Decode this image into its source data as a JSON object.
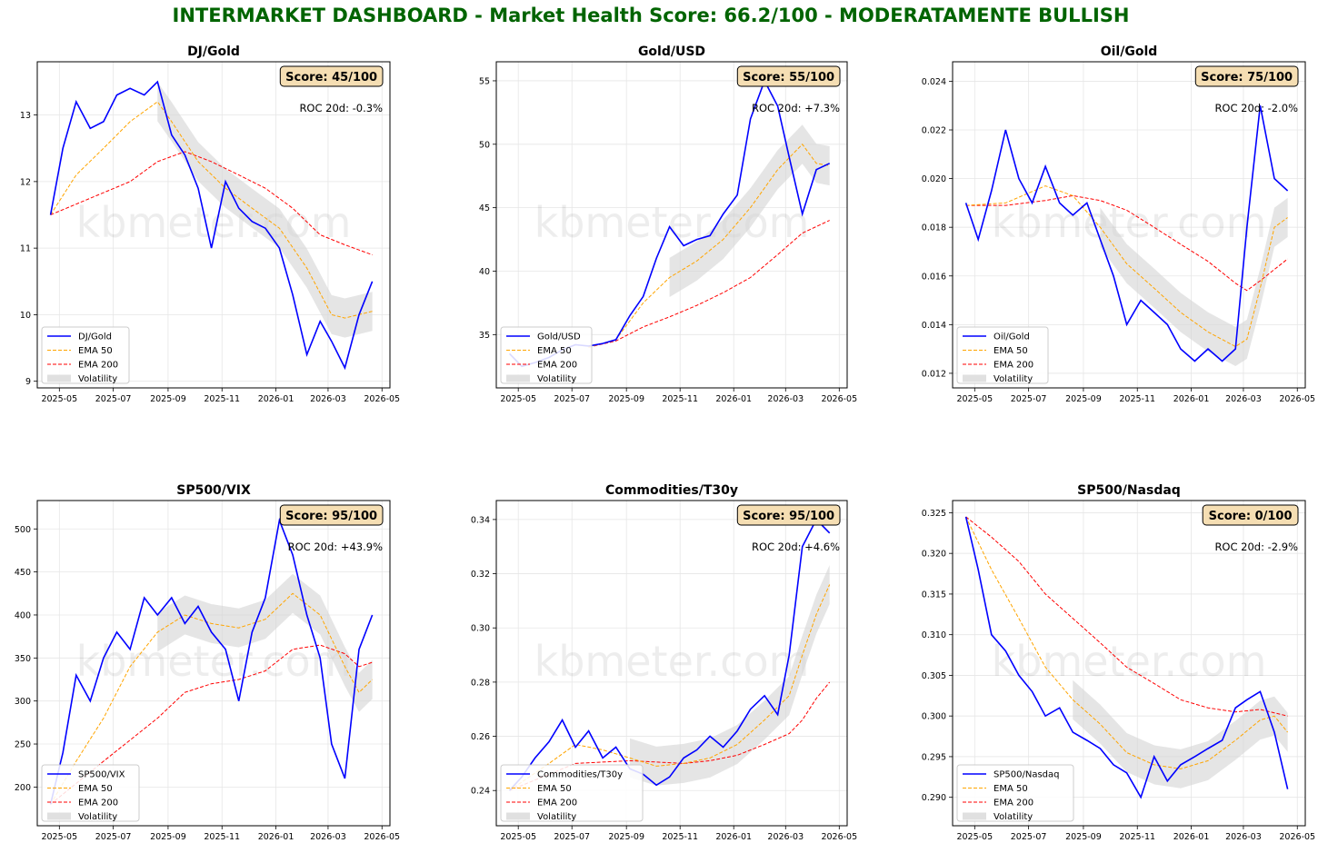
{
  "dashboard": {
    "title": "INTERMARKET DASHBOARD - Market Health Score: 66.2/100 - MODERATAMENTE BULLISH",
    "watermark": "kbmeter.com"
  },
  "colors": {
    "title": "#006400",
    "price": "#0000ff",
    "ema50": "#ffa500",
    "ema200": "#ff0000",
    "volatility": "#d3d3d3",
    "score_box": "#f5deb3"
  },
  "x_ticks": [
    "2025-05",
    "2025-07",
    "2025-09",
    "2025-11",
    "2026-01",
    "2026-03",
    "2026-05"
  ],
  "chart_data": [
    {
      "type": "line",
      "title": "DJ/Gold",
      "score": "Score: 45/100",
      "roc": "ROC 20d: -0.3%",
      "ylim": [
        8.9,
        13.8
      ],
      "yticks": [
        "9",
        "10",
        "11",
        "12",
        "13"
      ],
      "ytick_values": [
        9,
        10,
        11,
        12,
        13
      ],
      "grid": true,
      "legend_position": "lower-left",
      "legend": [
        "DJ/Gold",
        "EMA 50",
        "EMA 200",
        "Volatility"
      ],
      "series": [
        {
          "name": "DJ/Gold",
          "x": [
            "2025-04-21",
            "2025-05-05",
            "2025-05-20",
            "2025-06-05",
            "2025-06-20",
            "2025-07-05",
            "2025-07-20",
            "2025-08-05",
            "2025-08-20",
            "2025-09-05",
            "2025-09-20",
            "2025-10-05",
            "2025-10-20",
            "2025-11-05",
            "2025-11-20",
            "2025-12-05",
            "2025-12-20",
            "2026-01-05",
            "2026-01-20",
            "2026-02-05",
            "2026-02-20",
            "2026-03-05",
            "2026-03-20",
            "2026-04-05",
            "2026-04-20"
          ],
          "values": [
            11.5,
            12.5,
            13.2,
            12.8,
            12.9,
            13.3,
            13.4,
            13.3,
            13.5,
            12.7,
            12.4,
            11.9,
            11.0,
            12.0,
            11.6,
            11.4,
            11.3,
            11.0,
            10.3,
            9.4,
            9.9,
            9.6,
            9.2,
            10.0,
            10.5
          ]
        },
        {
          "name": "EMA 50",
          "x": [
            "2025-04-21",
            "2025-05-20",
            "2025-06-20",
            "2025-07-20",
            "2025-08-20",
            "2025-09-05",
            "2025-10-05",
            "2025-11-05",
            "2025-12-05",
            "2026-01-05",
            "2026-02-05",
            "2026-03-05",
            "2026-03-20",
            "2026-04-20"
          ],
          "values": [
            11.5,
            12.1,
            12.5,
            12.9,
            13.2,
            12.9,
            12.3,
            11.9,
            11.6,
            11.3,
            10.7,
            10.0,
            9.95,
            10.05
          ]
        },
        {
          "name": "EMA 200",
          "x": [
            "2025-04-21",
            "2025-06-05",
            "2025-07-20",
            "2025-08-20",
            "2025-09-20",
            "2025-10-20",
            "2025-11-20",
            "2025-12-20",
            "2026-01-20",
            "2026-02-20",
            "2026-03-20",
            "2026-04-20"
          ],
          "values": [
            11.5,
            11.75,
            12.0,
            12.3,
            12.45,
            12.3,
            12.1,
            11.9,
            11.6,
            11.2,
            11.05,
            10.9
          ]
        }
      ]
    },
    {
      "type": "line",
      "title": "Gold/USD",
      "score": "Score: 55/100",
      "roc": "ROC 20d: +7.3%",
      "ylim": [
        30.8,
        56.5
      ],
      "yticks": [
        "35",
        "40",
        "45",
        "50",
        "55"
      ],
      "ytick_values": [
        35,
        40,
        45,
        50,
        55
      ],
      "grid": true,
      "legend_position": "lower-left",
      "legend": [
        "Gold/USD",
        "EMA 50",
        "EMA 200",
        "Volatility"
      ],
      "series": [
        {
          "name": "Gold/USD",
          "x": [
            "2025-04-21",
            "2025-05-05",
            "2025-05-20",
            "2025-06-05",
            "2025-06-20",
            "2025-07-05",
            "2025-07-20",
            "2025-08-05",
            "2025-08-20",
            "2025-09-05",
            "2025-09-20",
            "2025-10-05",
            "2025-10-20",
            "2025-11-05",
            "2025-11-20",
            "2025-12-05",
            "2025-12-20",
            "2026-01-05",
            "2026-01-20",
            "2026-02-05",
            "2026-02-20",
            "2026-03-05",
            "2026-03-20",
            "2026-04-05",
            "2026-04-20"
          ],
          "values": [
            33.5,
            32.5,
            32.8,
            33.2,
            33.8,
            34.2,
            34.1,
            34.3,
            34.6,
            36.5,
            38.0,
            41.0,
            43.5,
            42.0,
            42.5,
            42.8,
            44.5,
            46.0,
            52.0,
            55.0,
            53.0,
            49.0,
            44.5,
            48.0,
            48.5
          ]
        },
        {
          "name": "EMA 50",
          "x": [
            "2025-07-20",
            "2025-08-20",
            "2025-09-20",
            "2025-10-20",
            "2025-11-20",
            "2025-12-20",
            "2026-01-20",
            "2026-02-20",
            "2026-03-20",
            "2026-04-05",
            "2026-04-20"
          ],
          "values": [
            34.0,
            34.6,
            37.5,
            39.5,
            40.8,
            42.5,
            45.0,
            48.0,
            50.0,
            48.5,
            48.3
          ]
        },
        {
          "name": "EMA 200",
          "x": [
            "2025-07-20",
            "2025-08-20",
            "2025-09-20",
            "2025-10-20",
            "2025-11-20",
            "2025-12-20",
            "2026-01-20",
            "2026-02-20",
            "2026-03-20",
            "2026-04-20"
          ],
          "values": [
            34.0,
            34.5,
            35.6,
            36.4,
            37.3,
            38.3,
            39.5,
            41.3,
            43.0,
            44.0
          ]
        }
      ]
    },
    {
      "type": "line",
      "title": "Oil/Gold",
      "score": "Score: 75/100",
      "roc": "ROC 20d: -2.0%",
      "ylim": [
        0.0114,
        0.0248
      ],
      "yticks": [
        "0.012",
        "0.014",
        "0.016",
        "0.018",
        "0.020",
        "0.022",
        "0.024"
      ],
      "ytick_values": [
        0.012,
        0.014,
        0.016,
        0.018,
        0.02,
        0.022,
        0.024
      ],
      "grid": true,
      "legend_position": "lower-left",
      "legend": [
        "Oil/Gold",
        "EMA 50",
        "EMA 200",
        "Volatility"
      ],
      "series": [
        {
          "name": "Oil/Gold",
          "x": [
            "2025-04-21",
            "2025-05-05",
            "2025-05-20",
            "2025-06-05",
            "2025-06-20",
            "2025-07-05",
            "2025-07-20",
            "2025-08-05",
            "2025-08-20",
            "2025-09-05",
            "2025-09-20",
            "2025-10-05",
            "2025-10-20",
            "2025-11-05",
            "2025-11-20",
            "2025-12-05",
            "2025-12-20",
            "2026-01-05",
            "2026-01-20",
            "2026-02-05",
            "2026-02-20",
            "2026-03-05",
            "2026-03-20",
            "2026-04-05",
            "2026-04-20"
          ],
          "values": [
            0.019,
            0.0175,
            0.0195,
            0.022,
            0.02,
            0.019,
            0.0205,
            0.019,
            0.0185,
            0.019,
            0.0175,
            0.016,
            0.014,
            0.015,
            0.0145,
            0.014,
            0.013,
            0.0125,
            0.013,
            0.0125,
            0.013,
            0.018,
            0.023,
            0.02,
            0.0195
          ]
        },
        {
          "name": "EMA 50",
          "x": [
            "2025-04-21",
            "2025-06-05",
            "2025-07-20",
            "2025-08-20",
            "2025-09-20",
            "2025-10-20",
            "2025-11-20",
            "2025-12-20",
            "2026-01-20",
            "2026-02-20",
            "2026-03-05",
            "2026-03-20",
            "2026-04-05",
            "2026-04-20"
          ],
          "values": [
            0.0189,
            0.019,
            0.0197,
            0.0193,
            0.018,
            0.0165,
            0.0155,
            0.0145,
            0.0137,
            0.0131,
            0.0134,
            0.0155,
            0.018,
            0.0184
          ]
        },
        {
          "name": "EMA 200",
          "x": [
            "2025-04-21",
            "2025-06-05",
            "2025-07-20",
            "2025-08-20",
            "2025-09-20",
            "2025-10-20",
            "2025-11-20",
            "2025-12-20",
            "2026-01-20",
            "2026-02-20",
            "2026-03-05",
            "2026-03-20",
            "2026-04-20"
          ],
          "values": [
            0.0189,
            0.0189,
            0.0191,
            0.0193,
            0.0191,
            0.0187,
            0.018,
            0.0173,
            0.0166,
            0.0157,
            0.0154,
            0.0158,
            0.0167
          ]
        }
      ]
    },
    {
      "type": "line",
      "title": "SP500/VIX",
      "score": "Score: 95/100",
      "roc": "ROC 20d: +43.9%",
      "ylim": [
        155,
        533
      ],
      "yticks": [
        "200",
        "250",
        "300",
        "350",
        "400",
        "450",
        "500"
      ],
      "ytick_values": [
        200,
        250,
        300,
        350,
        400,
        450,
        500
      ],
      "grid": true,
      "legend_position": "lower-left",
      "legend": [
        "SP500/VIX",
        "EMA 50",
        "EMA 200",
        "Volatility"
      ],
      "series": [
        {
          "name": "SP500/VIX",
          "x": [
            "2025-04-21",
            "2025-05-05",
            "2025-05-20",
            "2025-06-05",
            "2025-06-20",
            "2025-07-05",
            "2025-07-20",
            "2025-08-05",
            "2025-08-20",
            "2025-09-05",
            "2025-09-20",
            "2025-10-05",
            "2025-10-20",
            "2025-11-05",
            "2025-11-20",
            "2025-12-05",
            "2025-12-20",
            "2026-01-05",
            "2026-01-20",
            "2026-02-05",
            "2026-02-20",
            "2026-03-05",
            "2026-03-20",
            "2026-04-05",
            "2026-04-20"
          ],
          "values": [
            180,
            240,
            330,
            300,
            350,
            380,
            360,
            420,
            400,
            420,
            390,
            410,
            380,
            360,
            300,
            380,
            420,
            510,
            470,
            400,
            350,
            250,
            210,
            360,
            400
          ]
        },
        {
          "name": "EMA 50",
          "x": [
            "2025-04-21",
            "2025-05-20",
            "2025-06-20",
            "2025-07-20",
            "2025-08-20",
            "2025-09-20",
            "2025-10-20",
            "2025-11-20",
            "2025-12-20",
            "2026-01-20",
            "2026-02-20",
            "2026-03-20",
            "2026-04-05",
            "2026-04-20"
          ],
          "values": [
            180,
            230,
            280,
            340,
            380,
            400,
            390,
            385,
            395,
            425,
            400,
            340,
            310,
            325
          ]
        },
        {
          "name": "EMA 200",
          "x": [
            "2025-04-21",
            "2025-06-20",
            "2025-08-20",
            "2025-09-20",
            "2025-10-20",
            "2025-11-20",
            "2025-12-20",
            "2026-01-20",
            "2026-02-20",
            "2026-03-20",
            "2026-04-05",
            "2026-04-20"
          ],
          "values": [
            180,
            230,
            280,
            310,
            320,
            325,
            335,
            360,
            365,
            355,
            340,
            345
          ]
        }
      ]
    },
    {
      "type": "line",
      "title": "Commodities/T30y",
      "score": "Score: 95/100",
      "roc": "ROC 20d: +4.6%",
      "ylim": [
        0.227,
        0.347
      ],
      "yticks": [
        "0.24",
        "0.26",
        "0.28",
        "0.30",
        "0.32",
        "0.34"
      ],
      "ytick_values": [
        0.24,
        0.26,
        0.28,
        0.3,
        0.32,
        0.34
      ],
      "grid": true,
      "legend_position": "lower-left",
      "legend": [
        "Commodities/T30y",
        "EMA 50",
        "EMA 200",
        "Volatility"
      ],
      "series": [
        {
          "name": "Commodities/T30y",
          "x": [
            "2025-04-21",
            "2025-05-05",
            "2025-05-20",
            "2025-06-05",
            "2025-06-20",
            "2025-07-05",
            "2025-07-20",
            "2025-08-05",
            "2025-08-20",
            "2025-09-05",
            "2025-09-20",
            "2025-10-05",
            "2025-10-20",
            "2025-11-05",
            "2025-11-20",
            "2025-12-05",
            "2025-12-20",
            "2026-01-05",
            "2026-01-20",
            "2026-02-05",
            "2026-02-20",
            "2026-03-05",
            "2026-03-20",
            "2026-04-05",
            "2026-04-20"
          ],
          "values": [
            0.24,
            0.245,
            0.252,
            0.258,
            0.266,
            0.256,
            0.262,
            0.252,
            0.256,
            0.248,
            0.246,
            0.242,
            0.245,
            0.252,
            0.255,
            0.26,
            0.256,
            0.262,
            0.27,
            0.275,
            0.268,
            0.29,
            0.33,
            0.34,
            0.335
          ]
        },
        {
          "name": "EMA 50",
          "x": [
            "2025-04-21",
            "2025-06-05",
            "2025-07-05",
            "2025-08-05",
            "2025-09-05",
            "2025-10-05",
            "2025-11-05",
            "2025-12-05",
            "2026-01-05",
            "2026-02-05",
            "2026-03-05",
            "2026-03-20",
            "2026-04-05",
            "2026-04-20"
          ],
          "values": [
            0.24,
            0.25,
            0.257,
            0.255,
            0.252,
            0.249,
            0.25,
            0.252,
            0.257,
            0.266,
            0.275,
            0.29,
            0.305,
            0.316
          ]
        },
        {
          "name": "EMA 200",
          "x": [
            "2025-04-21",
            "2025-07-05",
            "2025-09-05",
            "2025-11-05",
            "2025-12-05",
            "2026-01-05",
            "2026-02-05",
            "2026-03-05",
            "2026-03-20",
            "2026-04-05",
            "2026-04-20"
          ],
          "values": [
            0.24,
            0.25,
            0.251,
            0.25,
            0.251,
            0.253,
            0.257,
            0.261,
            0.266,
            0.274,
            0.28
          ]
        }
      ]
    },
    {
      "type": "line",
      "title": "SP500/Nasdaq",
      "score": "Score: 0/100",
      "roc": "ROC 20d: -2.9%",
      "ylim": [
        0.2865,
        0.3265
      ],
      "yticks": [
        "0.290",
        "0.295",
        "0.300",
        "0.305",
        "0.310",
        "0.315",
        "0.320",
        "0.325"
      ],
      "ytick_values": [
        0.29,
        0.295,
        0.3,
        0.305,
        0.31,
        0.315,
        0.32,
        0.325
      ],
      "grid": true,
      "legend_position": "lower-left",
      "legend": [
        "SP500/Nasdaq",
        "EMA 50",
        "EMA 200",
        "Volatility"
      ],
      "series": [
        {
          "name": "SP500/Nasdaq",
          "x": [
            "2025-04-21",
            "2025-05-05",
            "2025-05-20",
            "2025-06-05",
            "2025-06-20",
            "2025-07-05",
            "2025-07-20",
            "2025-08-05",
            "2025-08-20",
            "2025-09-05",
            "2025-09-20",
            "2025-10-05",
            "2025-10-20",
            "2025-11-05",
            "2025-11-20",
            "2025-12-05",
            "2025-12-20",
            "2026-01-05",
            "2026-01-20",
            "2026-02-05",
            "2026-02-20",
            "2026-03-05",
            "2026-03-20",
            "2026-04-05",
            "2026-04-20"
          ],
          "values": [
            0.3245,
            0.318,
            0.31,
            0.308,
            0.305,
            0.303,
            0.3,
            0.301,
            0.298,
            0.297,
            0.296,
            0.294,
            0.293,
            0.29,
            0.295,
            0.292,
            0.294,
            0.295,
            0.296,
            0.297,
            0.301,
            0.302,
            0.303,
            0.298,
            0.291
          ]
        },
        {
          "name": "EMA 50",
          "x": [
            "2025-04-21",
            "2025-05-20",
            "2025-06-20",
            "2025-07-20",
            "2025-08-20",
            "2025-09-20",
            "2025-10-20",
            "2025-11-20",
            "2025-12-20",
            "2026-01-20",
            "2026-02-20",
            "2026-03-20",
            "2026-04-05",
            "2026-04-20"
          ],
          "values": [
            0.3245,
            0.318,
            0.312,
            0.306,
            0.302,
            0.299,
            0.2955,
            0.294,
            0.2935,
            0.2945,
            0.297,
            0.2995,
            0.3,
            0.298
          ]
        },
        {
          "name": "EMA 200",
          "x": [
            "2025-04-21",
            "2025-05-20",
            "2025-06-20",
            "2025-07-20",
            "2025-08-20",
            "2025-09-20",
            "2025-10-20",
            "2025-11-20",
            "2025-12-20",
            "2026-01-20",
            "2026-02-20",
            "2026-03-20",
            "2026-04-20"
          ],
          "values": [
            0.3245,
            0.322,
            0.319,
            0.315,
            0.312,
            0.309,
            0.306,
            0.304,
            0.302,
            0.301,
            0.3005,
            0.3008,
            0.3
          ]
        }
      ]
    }
  ]
}
